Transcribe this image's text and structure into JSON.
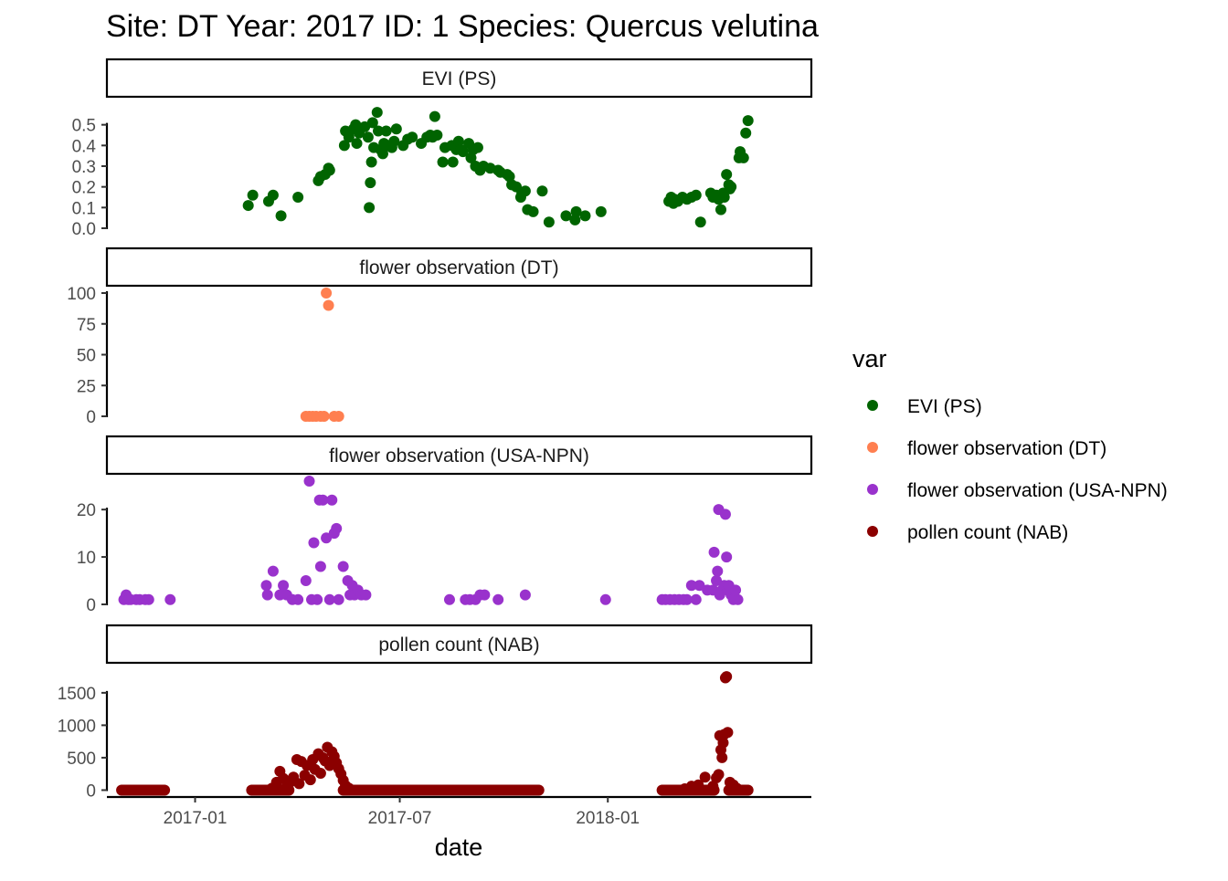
{
  "title": "Site: DT  Year: 2017  ID: 1  Species: Quercus velutina",
  "xlabel": "date",
  "legend": {
    "title": "var",
    "entries": [
      {
        "label": "EVI (PS)",
        "color": "#006400"
      },
      {
        "label": "flower observation (DT)",
        "color": "#FF7F50"
      },
      {
        "label": "flower observation (USA-NPN)",
        "color": "#9932CC"
      },
      {
        "label": "pollen count (NAB)",
        "color": "#8B0000"
      }
    ]
  },
  "chart_data": {
    "type": "scatter",
    "x_axis": {
      "type": "date",
      "range": [
        "2016-10-15",
        "2018-06-30"
      ],
      "ticks": [
        "2017-01-01",
        "2017-07-01",
        "2018-01-01"
      ],
      "tick_labels": [
        "2017-01",
        "2017-07",
        "2018-01"
      ]
    },
    "grid": false,
    "legend_position": "right",
    "facets": [
      {
        "strip": "EVI (PS)",
        "series": "EVI (PS)",
        "color": "#006400",
        "ylim": [
          0,
          0.6
        ],
        "yticks": [
          0,
          0.1,
          0.2,
          0.3,
          0.4,
          0.5
        ],
        "ytick_labels": [
          "0.0",
          "0.1",
          "0.2",
          "0.3",
          "0.4",
          "0.5"
        ],
        "points": [
          [
            "2017-02-17",
            0.11
          ],
          [
            "2017-02-21",
            0.16
          ],
          [
            "2017-03-07",
            0.13
          ],
          [
            "2017-03-11",
            0.16
          ],
          [
            "2017-03-18",
            0.06
          ],
          [
            "2017-04-02",
            0.15
          ],
          [
            "2017-04-20",
            0.23
          ],
          [
            "2017-04-22",
            0.25
          ],
          [
            "2017-04-26",
            0.26
          ],
          [
            "2017-04-29",
            0.29
          ],
          [
            "2017-04-30",
            0.28
          ],
          [
            "2017-05-13",
            0.4
          ],
          [
            "2017-05-14",
            0.47
          ],
          [
            "2017-05-17",
            0.44
          ],
          [
            "2017-05-21",
            0.48
          ],
          [
            "2017-05-23",
            0.5
          ],
          [
            "2017-05-24",
            0.41
          ],
          [
            "2017-05-26",
            0.46
          ],
          [
            "2017-05-31",
            0.49
          ],
          [
            "2017-06-03",
            0.44
          ],
          [
            "2017-06-04",
            0.1
          ],
          [
            "2017-06-05",
            0.22
          ],
          [
            "2017-06-06",
            0.32
          ],
          [
            "2017-06-07",
            0.51
          ],
          [
            "2017-06-08",
            0.39
          ],
          [
            "2017-06-11",
            0.56
          ],
          [
            "2017-06-12",
            0.47
          ],
          [
            "2017-06-14",
            0.38
          ],
          [
            "2017-06-16",
            0.36
          ],
          [
            "2017-06-17",
            0.41
          ],
          [
            "2017-06-19",
            0.47
          ],
          [
            "2017-06-21",
            0.4
          ],
          [
            "2017-06-24",
            0.39
          ],
          [
            "2017-06-26",
            0.42
          ],
          [
            "2017-06-28",
            0.48
          ],
          [
            "2017-07-04",
            0.4
          ],
          [
            "2017-07-08",
            0.43
          ],
          [
            "2017-07-12",
            0.44
          ],
          [
            "2017-07-20",
            0.41
          ],
          [
            "2017-07-25",
            0.44
          ],
          [
            "2017-07-28",
            0.45
          ],
          [
            "2017-07-30",
            0.44
          ],
          [
            "2017-08-01",
            0.54
          ],
          [
            "2017-08-03",
            0.45
          ],
          [
            "2017-08-08",
            0.32
          ],
          [
            "2017-08-10",
            0.39
          ],
          [
            "2017-08-16",
            0.4
          ],
          [
            "2017-08-17",
            0.32
          ],
          [
            "2017-08-20",
            0.38
          ],
          [
            "2017-08-22",
            0.42
          ],
          [
            "2017-08-24",
            0.38
          ],
          [
            "2017-08-26",
            0.37
          ],
          [
            "2017-08-31",
            0.41
          ],
          [
            "2017-09-02",
            0.34
          ],
          [
            "2017-09-04",
            0.38
          ],
          [
            "2017-09-06",
            0.3
          ],
          [
            "2017-09-08",
            0.39
          ],
          [
            "2017-09-10",
            0.28
          ],
          [
            "2017-09-13",
            0.3
          ],
          [
            "2017-09-19",
            0.29
          ],
          [
            "2017-09-26",
            0.28
          ],
          [
            "2017-09-28",
            0.27
          ],
          [
            "2017-10-04",
            0.26
          ],
          [
            "2017-10-06",
            0.25
          ],
          [
            "2017-10-08",
            0.21
          ],
          [
            "2017-10-12",
            0.2
          ],
          [
            "2017-10-16",
            0.15
          ],
          [
            "2017-10-17",
            0.17
          ],
          [
            "2017-10-20",
            0.18
          ],
          [
            "2017-10-22",
            0.09
          ],
          [
            "2017-10-27",
            0.08
          ],
          [
            "2017-11-04",
            0.18
          ],
          [
            "2017-11-10",
            0.03
          ],
          [
            "2017-11-25",
            0.06
          ],
          [
            "2017-12-03",
            0.04
          ],
          [
            "2017-12-04",
            0.08
          ],
          [
            "2017-12-12",
            0.06
          ],
          [
            "2017-12-26",
            0.08
          ],
          [
            "2018-02-24",
            0.13
          ],
          [
            "2018-02-26",
            0.15
          ],
          [
            "2018-02-28",
            0.12
          ],
          [
            "2018-03-01",
            0.14
          ],
          [
            "2018-03-04",
            0.13
          ],
          [
            "2018-03-08",
            0.15
          ],
          [
            "2018-03-12",
            0.14
          ],
          [
            "2018-03-16",
            0.15
          ],
          [
            "2018-03-20",
            0.16
          ],
          [
            "2018-03-24",
            0.03
          ],
          [
            "2018-04-02",
            0.17
          ],
          [
            "2018-04-04",
            0.15
          ],
          [
            "2018-04-07",
            0.16
          ],
          [
            "2018-04-09",
            0.14
          ],
          [
            "2018-04-11",
            0.09
          ],
          [
            "2018-04-13",
            0.17
          ],
          [
            "2018-04-14",
            0.15
          ],
          [
            "2018-04-16",
            0.26
          ],
          [
            "2018-04-18",
            0.21
          ],
          [
            "2018-04-19",
            0.19
          ],
          [
            "2018-04-20",
            0.2
          ],
          [
            "2018-04-27",
            0.34
          ],
          [
            "2018-04-28",
            0.37
          ],
          [
            "2018-05-01",
            0.34
          ],
          [
            "2018-05-03",
            0.46
          ],
          [
            "2018-05-05",
            0.52
          ]
        ]
      },
      {
        "strip": "flower observation (DT)",
        "series": "flower observation (DT)",
        "color": "#FF7F50",
        "ylim": [
          0,
          100
        ],
        "yticks": [
          0,
          25,
          50,
          75,
          100
        ],
        "ytick_labels": [
          "0",
          "25",
          "50",
          "75",
          "100"
        ],
        "points": [
          [
            "2017-04-09",
            0
          ],
          [
            "2017-04-12",
            0
          ],
          [
            "2017-04-15",
            0
          ],
          [
            "2017-04-18",
            0
          ],
          [
            "2017-04-22",
            0
          ],
          [
            "2017-04-25",
            0
          ],
          [
            "2017-04-27",
            100
          ],
          [
            "2017-04-29",
            90
          ],
          [
            "2017-05-04",
            0
          ],
          [
            "2017-05-08",
            0
          ]
        ]
      },
      {
        "strip": "flower observation (USA-NPN)",
        "series": "flower observation (USA-NPN)",
        "color": "#9932CC",
        "ylim": [
          0,
          26
        ],
        "yticks": [
          0,
          10,
          20
        ],
        "ytick_labels": [
          "0",
          "10",
          "20"
        ],
        "points": [
          [
            "2016-10-30",
            1
          ],
          [
            "2016-11-01",
            2
          ],
          [
            "2016-11-03",
            1
          ],
          [
            "2016-11-05",
            1
          ],
          [
            "2016-11-10",
            1
          ],
          [
            "2016-11-13",
            1
          ],
          [
            "2016-11-18",
            1
          ],
          [
            "2016-11-21",
            1
          ],
          [
            "2016-12-10",
            1
          ],
          [
            "2017-03-05",
            4
          ],
          [
            "2017-03-06",
            2
          ],
          [
            "2017-03-11",
            7
          ],
          [
            "2017-03-17",
            2
          ],
          [
            "2017-03-20",
            4
          ],
          [
            "2017-03-23",
            2
          ],
          [
            "2017-03-28",
            1
          ],
          [
            "2017-04-02",
            1
          ],
          [
            "2017-04-09",
            5
          ],
          [
            "2017-04-12",
            26
          ],
          [
            "2017-04-14",
            1
          ],
          [
            "2017-04-16",
            13
          ],
          [
            "2017-04-19",
            1
          ],
          [
            "2017-04-21",
            22
          ],
          [
            "2017-04-22",
            8
          ],
          [
            "2017-04-24",
            22
          ],
          [
            "2017-04-27",
            14
          ],
          [
            "2017-04-30",
            1
          ],
          [
            "2017-05-02",
            22
          ],
          [
            "2017-05-04",
            15
          ],
          [
            "2017-05-06",
            16
          ],
          [
            "2017-05-08",
            1
          ],
          [
            "2017-05-12",
            8
          ],
          [
            "2017-05-16",
            5
          ],
          [
            "2017-05-18",
            2
          ],
          [
            "2017-05-20",
            4
          ],
          [
            "2017-05-22",
            2
          ],
          [
            "2017-05-25",
            3
          ],
          [
            "2017-05-28",
            2
          ],
          [
            "2017-06-01",
            2
          ],
          [
            "2017-08-14",
            1
          ],
          [
            "2017-08-28",
            1
          ],
          [
            "2017-09-01",
            1
          ],
          [
            "2017-09-06",
            1
          ],
          [
            "2017-09-10",
            2
          ],
          [
            "2017-09-14",
            2
          ],
          [
            "2017-09-26",
            1
          ],
          [
            "2017-10-20",
            2
          ],
          [
            "2017-12-30",
            1
          ],
          [
            "2018-02-18",
            1
          ],
          [
            "2018-02-21",
            1
          ],
          [
            "2018-02-25",
            1
          ],
          [
            "2018-03-01",
            1
          ],
          [
            "2018-03-05",
            1
          ],
          [
            "2018-03-09",
            1
          ],
          [
            "2018-03-12",
            1
          ],
          [
            "2018-03-16",
            4
          ],
          [
            "2018-03-20",
            1
          ],
          [
            "2018-03-23",
            4
          ],
          [
            "2018-03-30",
            3
          ],
          [
            "2018-04-04",
            3
          ],
          [
            "2018-04-05",
            11
          ],
          [
            "2018-04-07",
            5
          ],
          [
            "2018-04-08",
            7
          ],
          [
            "2018-04-09",
            20
          ],
          [
            "2018-04-10",
            2
          ],
          [
            "2018-04-12",
            3
          ],
          [
            "2018-04-14",
            4
          ],
          [
            "2018-04-15",
            19
          ],
          [
            "2018-04-16",
            10
          ],
          [
            "2018-04-17",
            3
          ],
          [
            "2018-04-18",
            4
          ],
          [
            "2018-04-20",
            2
          ],
          [
            "2018-04-22",
            1
          ],
          [
            "2018-04-24",
            3
          ],
          [
            "2018-04-26",
            1
          ]
        ]
      },
      {
        "strip": "pollen count (NAB)",
        "series": "pollen count (NAB)",
        "color": "#8B0000",
        "ylim": [
          -50,
          1850
        ],
        "yticks": [
          0,
          500,
          1000,
          1500
        ],
        "ytick_labels": [
          "0",
          "500",
          "1000",
          "1500"
        ],
        "points": [
          [
            "2017-03-10",
            30
          ],
          [
            "2017-03-14",
            120
          ],
          [
            "2017-03-17",
            290
          ],
          [
            "2017-03-20",
            180
          ],
          [
            "2017-03-23",
            60
          ],
          [
            "2017-03-26",
            120
          ],
          [
            "2017-03-29",
            200
          ],
          [
            "2017-04-01",
            470
          ],
          [
            "2017-04-03",
            100
          ],
          [
            "2017-04-05",
            440
          ],
          [
            "2017-04-08",
            230
          ],
          [
            "2017-04-10",
            380
          ],
          [
            "2017-04-13",
            160
          ],
          [
            "2017-04-15",
            470
          ],
          [
            "2017-04-17",
            320
          ],
          [
            "2017-04-20",
            560
          ],
          [
            "2017-04-22",
            260
          ],
          [
            "2017-04-24",
            500
          ],
          [
            "2017-04-26",
            450
          ],
          [
            "2017-04-28",
            660
          ],
          [
            "2017-04-30",
            380
          ],
          [
            "2017-05-02",
            590
          ],
          [
            "2017-05-04",
            520
          ],
          [
            "2017-05-06",
            420
          ],
          [
            "2017-05-08",
            330
          ],
          [
            "2017-05-10",
            250
          ],
          [
            "2017-05-12",
            150
          ],
          [
            "2017-05-14",
            70
          ],
          [
            "2017-05-17",
            30
          ],
          [
            "2018-03-10",
            20
          ],
          [
            "2018-03-16",
            60
          ],
          [
            "2018-03-22",
            80
          ],
          [
            "2018-03-28",
            200
          ],
          [
            "2018-04-04",
            60
          ],
          [
            "2018-04-07",
            190
          ],
          [
            "2018-04-09",
            240
          ],
          [
            "2018-04-10",
            840
          ],
          [
            "2018-04-11",
            620
          ],
          [
            "2018-04-12",
            500
          ],
          [
            "2018-04-13",
            730
          ],
          [
            "2018-04-14",
            860
          ],
          [
            "2018-04-15",
            1730
          ],
          [
            "2018-04-16",
            1750
          ],
          [
            "2018-04-17",
            890
          ],
          [
            "2018-04-19",
            120
          ],
          [
            "2018-04-22",
            80
          ],
          [
            "2018-04-25",
            30
          ]
        ],
        "baseline_runs": [
          {
            "from": "2016-10-28",
            "to": "2016-12-05",
            "value": 0
          },
          {
            "from": "2017-02-20",
            "to": "2017-03-25",
            "value": 0
          },
          {
            "from": "2017-05-12",
            "to": "2017-11-01",
            "value": 0
          },
          {
            "from": "2018-02-18",
            "to": "2018-04-05",
            "value": 0
          },
          {
            "from": "2018-04-18",
            "to": "2018-05-05",
            "value": 0
          }
        ]
      }
    ]
  }
}
